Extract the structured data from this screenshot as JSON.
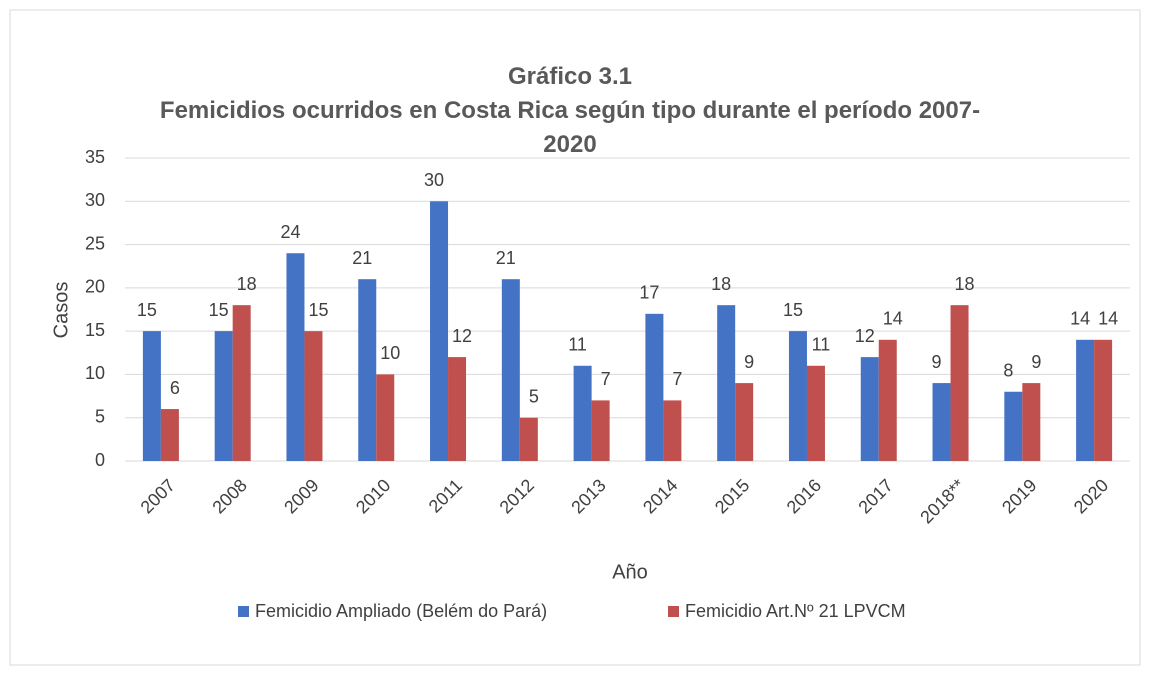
{
  "chart_data": {
    "type": "bar",
    "title": "Gráfico 3.1",
    "subtitle": "Femicidios ocurridos en Costa Rica según tipo durante el período 2007-2020",
    "x_label": "Año",
    "y_label": "Casos",
    "categories": [
      "2007",
      "2008",
      "2009",
      "2010",
      "2011",
      "2012",
      "2013",
      "2014",
      "2015",
      "2016",
      "2017",
      "2018**",
      "2019",
      "2020"
    ],
    "series": [
      {
        "name": "Femicidio Ampliado (Belém do Pará)",
        "color": "#4472c4",
        "values": [
          15,
          15,
          24,
          21,
          30,
          21,
          11,
          17,
          18,
          15,
          12,
          9,
          8,
          14
        ]
      },
      {
        "name": "Femicidio Art.Nº 21 LPVCM",
        "color": "#c0504d",
        "values": [
          6,
          18,
          15,
          10,
          12,
          5,
          7,
          7,
          9,
          11,
          14,
          18,
          9,
          14
        ]
      }
    ],
    "ylim": [
      0,
      35
    ],
    "yticks": [
      0,
      5,
      10,
      15,
      20,
      25,
      30,
      35
    ],
    "grid": true,
    "legend": "bottom"
  }
}
